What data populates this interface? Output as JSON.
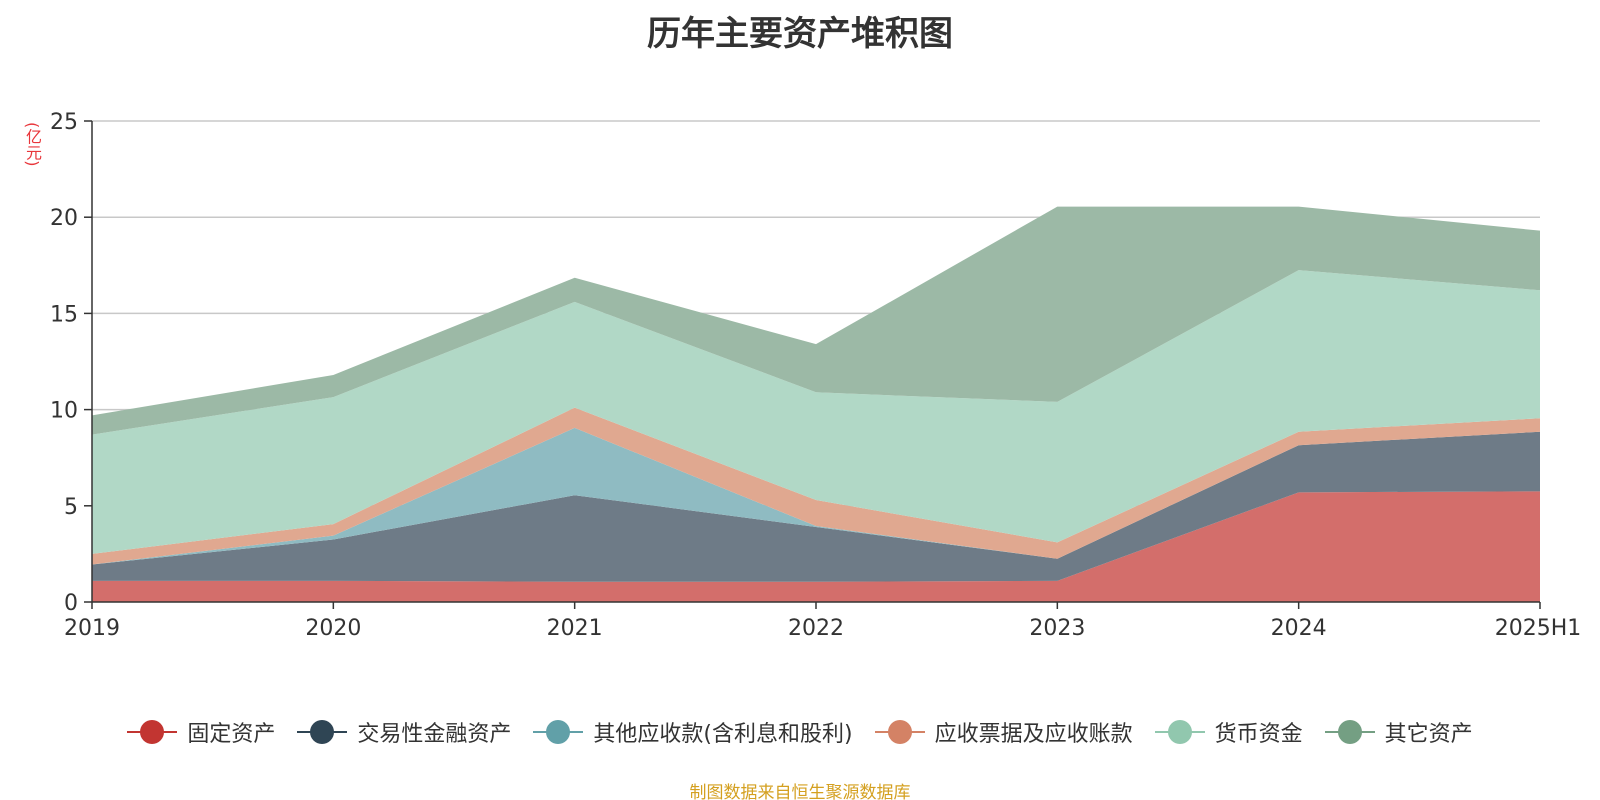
{
  "chart_data": {
    "type": "area",
    "stacked": true,
    "title": "历年主要资产堆积图",
    "ylabel": "(亿元)",
    "categories": [
      "2019",
      "2020",
      "2021",
      "2022",
      "2023",
      "2024",
      "2025H1"
    ],
    "ylim": [
      0,
      25
    ],
    "yticks": [
      0,
      5,
      10,
      15,
      20,
      25
    ],
    "grid": true,
    "legend_position": "bottom",
    "series": [
      {
        "name": "固定资产",
        "color": "#c23531",
        "fill": "#d36e6b",
        "values": [
          1.1,
          1.1,
          1.05,
          1.05,
          1.1,
          5.7,
          5.75
        ]
      },
      {
        "name": "交易性金融资产",
        "color": "#2f4554",
        "fill": "#6e7b87",
        "values": [
          0.85,
          2.15,
          4.5,
          2.85,
          1.15,
          2.45,
          3.1
        ]
      },
      {
        "name": "其他应收款(含利息和股利)",
        "color": "#61a0a8",
        "fill": "#8fbbc2",
        "values": [
          0.0,
          0.2,
          3.5,
          0.05,
          0.0,
          0.0,
          0.0
        ]
      },
      {
        "name": "应收票据及应收账款",
        "color": "#d48265",
        "fill": "#e0a890",
        "values": [
          0.55,
          0.6,
          1.05,
          1.35,
          0.85,
          0.7,
          0.7
        ]
      },
      {
        "name": "货币资金",
        "color": "#91c7ae",
        "fill": "#b1d8c6",
        "values": [
          6.2,
          6.6,
          5.5,
          5.6,
          7.3,
          8.4,
          6.65
        ]
      },
      {
        "name": "其它资产",
        "color": "#749f83",
        "fill": "#9cb9a6",
        "values": [
          1.0,
          1.15,
          1.25,
          2.5,
          10.15,
          3.3,
          3.1
        ]
      }
    ],
    "source_note": "制图数据来自恒生聚源数据库"
  }
}
